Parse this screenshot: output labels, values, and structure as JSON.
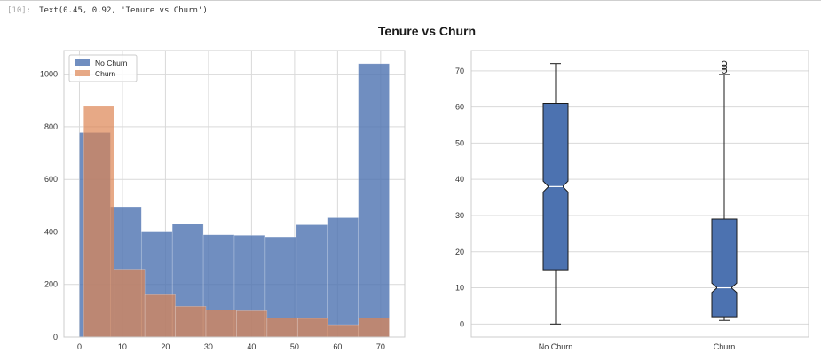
{
  "cell": {
    "prompt": "[10]:",
    "output": "Text(0.45, 0.92, 'Tenure vs Churn')"
  },
  "figure": {
    "suptitle": "Tenure vs Churn"
  },
  "colors": {
    "no_churn": "#4c72b0",
    "churn": "#dd8452",
    "grid": "#d9d9d9",
    "box_fill": "#4c72b0",
    "box_edge": "#1a1a1a"
  },
  "chart_data": [
    {
      "type": "histogram",
      "title": "",
      "xlabel": "",
      "ylabel": "",
      "xlim": [
        -3.6,
        75.6
      ],
      "ylim": [
        0,
        1090
      ],
      "xticks": [
        0,
        10,
        20,
        30,
        40,
        50,
        60,
        70
      ],
      "yticks": [
        0,
        200,
        400,
        600,
        800,
        1000
      ],
      "grid": true,
      "legend": "upper left",
      "series": [
        {
          "name": "No Churn",
          "alpha": 0.8,
          "bins": [
            0,
            7.2,
            14.4,
            21.6,
            28.8,
            36,
            43.2,
            50.4,
            57.6,
            64.8,
            72
          ],
          "counts": [
            778,
            496,
            403,
            431,
            389,
            387,
            381,
            427,
            454,
            1040
          ]
        },
        {
          "name": "Churn",
          "alpha": 0.7,
          "bins": [
            1,
            8.1,
            15.2,
            22.3,
            29.4,
            36.5,
            43.6,
            50.7,
            57.8,
            64.9,
            72
          ],
          "counts": [
            878,
            258,
            161,
            117,
            103,
            100,
            73,
            71,
            47,
            73
          ]
        }
      ]
    },
    {
      "type": "boxplot",
      "title": "",
      "xlabel": "",
      "ylabel": "",
      "ylim": [
        -3.6,
        75.6
      ],
      "yticks": [
        0,
        10,
        20,
        30,
        40,
        50,
        60,
        70
      ],
      "categories": [
        "No Churn",
        "Churn"
      ],
      "notch": true,
      "grid": true,
      "boxes": [
        {
          "name": "No Churn",
          "whislo": 0,
          "q1": 15,
          "med": 38,
          "q3": 61,
          "whishi": 72,
          "ci": [
            36.5,
            39.5
          ],
          "fliers": []
        },
        {
          "name": "Churn",
          "whislo": 1,
          "q1": 2,
          "med": 10,
          "q3": 29,
          "whishi": 69,
          "ci": [
            8.7,
            11.3
          ],
          "fliers": [
            70,
            71,
            72
          ]
        }
      ]
    }
  ]
}
